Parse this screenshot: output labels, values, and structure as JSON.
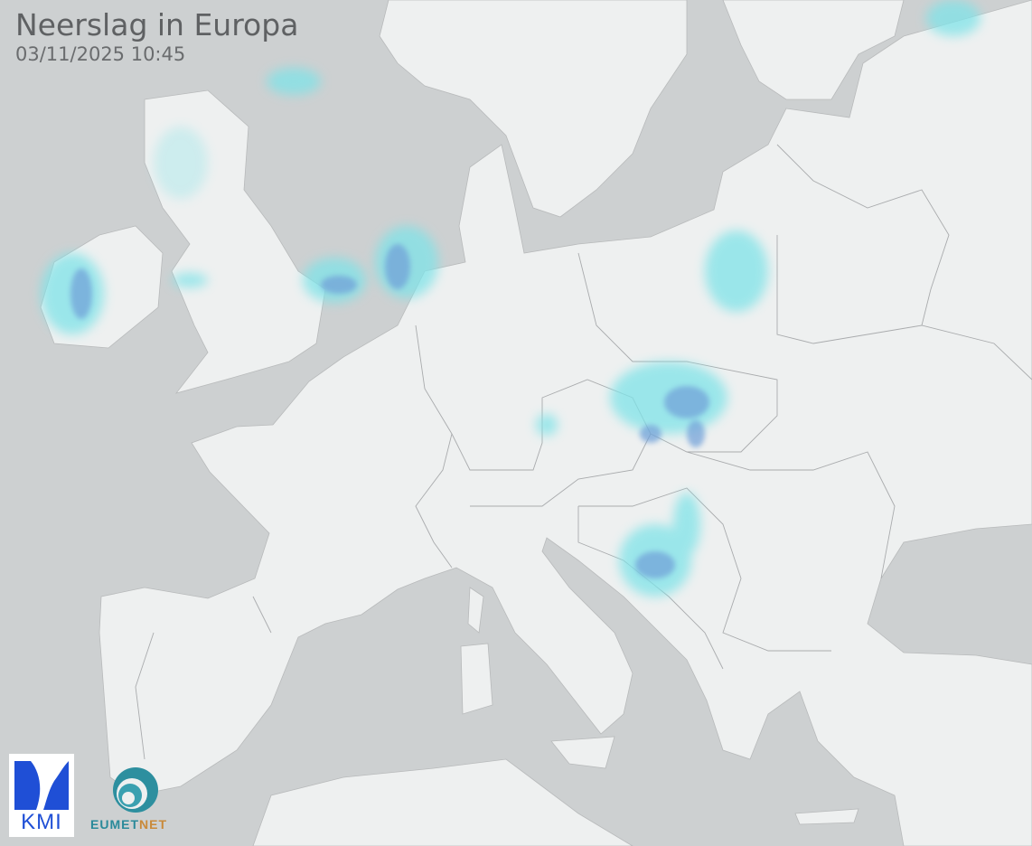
{
  "header": {
    "title": "Neerslag in Europa",
    "timestamp": "03/11/2025 10:45"
  },
  "logos": {
    "kmi": "KMI",
    "eumetnet_a": "EUMET",
    "eumetnet_b": "NET"
  },
  "colors": {
    "sea": "#cdd0d1",
    "land": "#eef0f0",
    "border": "#a9abad",
    "precip_light": "#7fe3e8",
    "precip_moderate": "#6f9fd8"
  }
}
